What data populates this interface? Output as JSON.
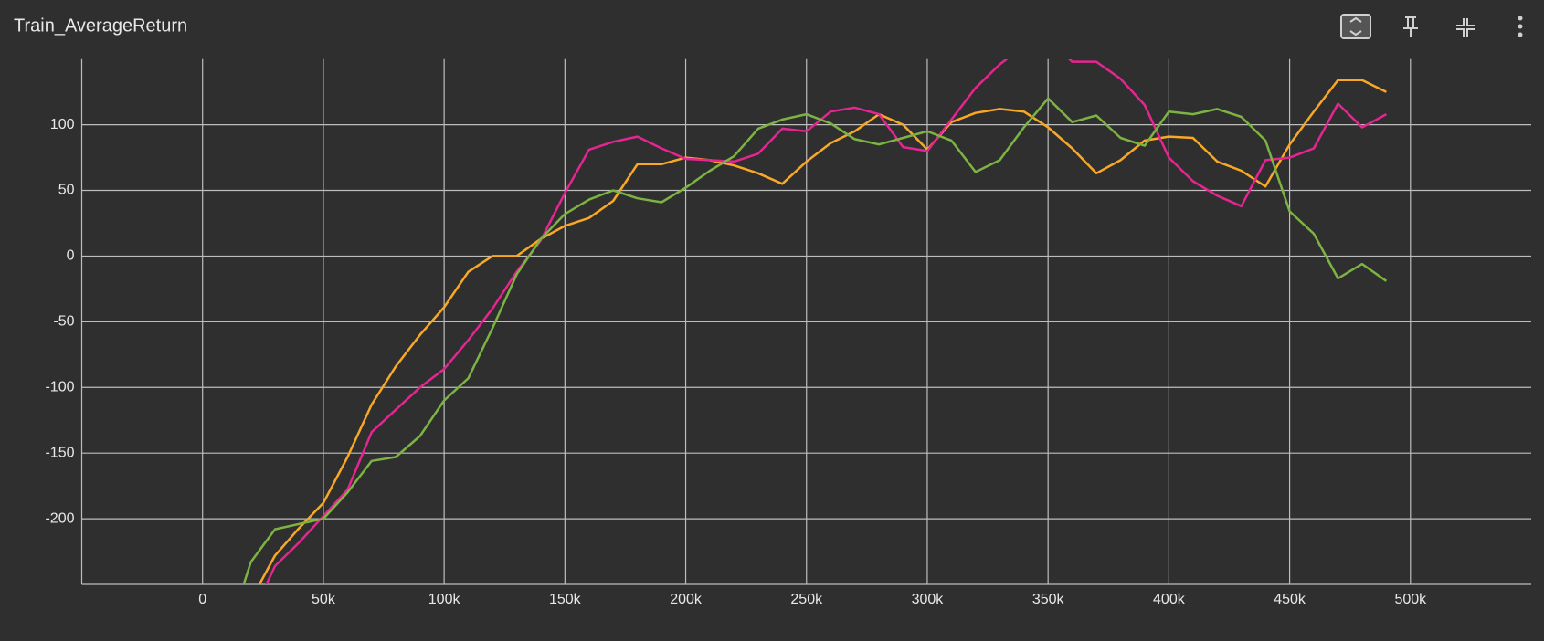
{
  "chart_data": {
    "type": "line",
    "title": "Train_AverageReturn",
    "x": [
      10000,
      20000,
      30000,
      40000,
      50000,
      60000,
      70000,
      80000,
      90000,
      100000,
      110000,
      120000,
      130000,
      140000,
      150000,
      160000,
      170000,
      180000,
      190000,
      200000,
      210000,
      220000,
      230000,
      240000,
      250000,
      260000,
      270000,
      280000,
      290000,
      300000,
      310000,
      320000,
      330000,
      340000,
      350000,
      360000,
      370000,
      380000,
      390000,
      400000,
      410000,
      420000,
      430000,
      440000,
      450000,
      460000,
      470000,
      480000,
      490000
    ],
    "series": [
      {
        "color": "#f9a825",
        "values": [
          null,
          -262,
          -228,
          -207,
          -188,
          -153,
          -113,
          -84,
          -60,
          -39,
          -12,
          0,
          0,
          13,
          23,
          29,
          42,
          70,
          70,
          75,
          73,
          69,
          63,
          55,
          72,
          86,
          95,
          108,
          100,
          81,
          102,
          109,
          112,
          110,
          98,
          82,
          63,
          73,
          88,
          91,
          90,
          72,
          65,
          53,
          85,
          110,
          134,
          134,
          125
        ]
      },
      {
        "color": "#e52592",
        "values": [
          null,
          -275,
          -236,
          -218,
          -198,
          -178,
          -134,
          -117,
          -100,
          -86,
          -64,
          -40,
          -12,
          12,
          48,
          81,
          87,
          91,
          82,
          74,
          73,
          72,
          78,
          97,
          95,
          110,
          113,
          108,
          83,
          80,
          104,
          128,
          146,
          160,
          165,
          148,
          148,
          135,
          115,
          75,
          57,
          46,
          38,
          73,
          75,
          82,
          116,
          98,
          108
        ]
      },
      {
        "color": "#7cb342",
        "values": [
          -290,
          -233,
          -208,
          -204,
          -200,
          -180,
          -156,
          -153,
          -137,
          -110,
          -93,
          -55,
          -14,
          13,
          32,
          43,
          50,
          44,
          41,
          52,
          65,
          76,
          97,
          104,
          108,
          101,
          89,
          85,
          90,
          95,
          88,
          64,
          73,
          98,
          120,
          102,
          107,
          90,
          84,
          110,
          108,
          112,
          106,
          88,
          34,
          17,
          -17,
          -6,
          -19
        ]
      }
    ],
    "xlim": [
      -50000,
      550000
    ],
    "ylim": [
      -250,
      150
    ],
    "xticks": [
      0,
      {
        "value": 50000,
        "label": "50k"
      },
      {
        "value": 100000,
        "label": "100k"
      },
      {
        "value": 150000,
        "label": "150k"
      },
      {
        "value": 200000,
        "label": "200k"
      },
      {
        "value": 250000,
        "label": "250k"
      },
      {
        "value": 300000,
        "label": "300k"
      },
      {
        "value": 350000,
        "label": "350k"
      },
      {
        "value": 400000,
        "label": "400k"
      },
      {
        "value": 450000,
        "label": "450k"
      },
      {
        "value": 500000,
        "label": "500k"
      }
    ],
    "yticks": [
      -200,
      -150,
      -100,
      -50,
      0,
      50,
      100
    ],
    "grid": true
  }
}
